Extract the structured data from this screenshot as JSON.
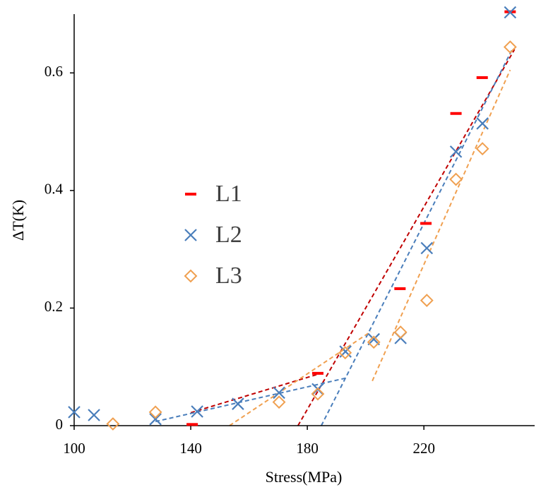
{
  "chart_data": {
    "type": "scatter",
    "x_label": "Stress(MPa)",
    "y_label": "ΔT(K)",
    "xlim": [
      100,
      258
    ],
    "ylim": [
      0,
      0.7
    ],
    "xticks": [
      100,
      140,
      180,
      220
    ],
    "yticks": [
      0,
      0.2,
      0.4,
      0.6
    ],
    "legend": "left",
    "series": [
      {
        "name": "L1",
        "color": "#ff0000",
        "marker": "dash",
        "trend_color": "#c00000",
        "x": [
          140.5,
          183.6,
          211.8,
          220.7,
          231,
          240,
          249.6
        ],
        "values": [
          0.002,
          0.089,
          0.233,
          0.344,
          0.531,
          0.592,
          0.704
        ],
        "trendlines": [
          {
            "x": [
              140,
              186
            ],
            "y": [
              0.022,
              0.091
            ]
          },
          {
            "x": [
              176.8,
              251.1
            ],
            "y": [
              0,
              0.64
            ]
          }
        ]
      },
      {
        "name": "L2",
        "color": "#4a7ebb",
        "marker": "x",
        "trend_color": "#4a7ebb",
        "x": [
          100,
          106.8,
          127.9,
          142.2,
          156.2,
          170.3,
          183.6,
          193.1,
          202.8,
          212,
          221,
          231,
          240.1,
          249.6
        ],
        "values": [
          0.023,
          0.018,
          0.011,
          0.024,
          0.037,
          0.056,
          0.062,
          0.126,
          0.147,
          0.149,
          0.302,
          0.466,
          0.514,
          0.703
        ],
        "trendlines": [
          {
            "x": [
              127.9,
              193.3
            ],
            "y": [
              0.007,
              0.081
            ]
          },
          {
            "x": [
              184.8,
              250.3
            ],
            "y": [
              0,
              0.64
            ]
          }
        ]
      },
      {
        "name": "L3",
        "color": "#f0a050",
        "marker": "diamond",
        "trend_color": "#f0a050",
        "x": [
          113.3,
          127.9,
          170.3,
          183.6,
          193,
          202.8,
          212,
          221,
          231,
          240.1,
          249.6
        ],
        "values": [
          0.003,
          0.023,
          0.04,
          0.054,
          0.124,
          0.142,
          0.159,
          0.213,
          0.419,
          0.471,
          0.644
        ],
        "trendlines": [
          {
            "x": [
              153.3,
              201.8
            ],
            "y": [
              0,
              0.16
            ]
          },
          {
            "x": [
              202.3,
              249.6
            ],
            "y": [
              0.076,
              0.605
            ]
          }
        ]
      }
    ]
  }
}
